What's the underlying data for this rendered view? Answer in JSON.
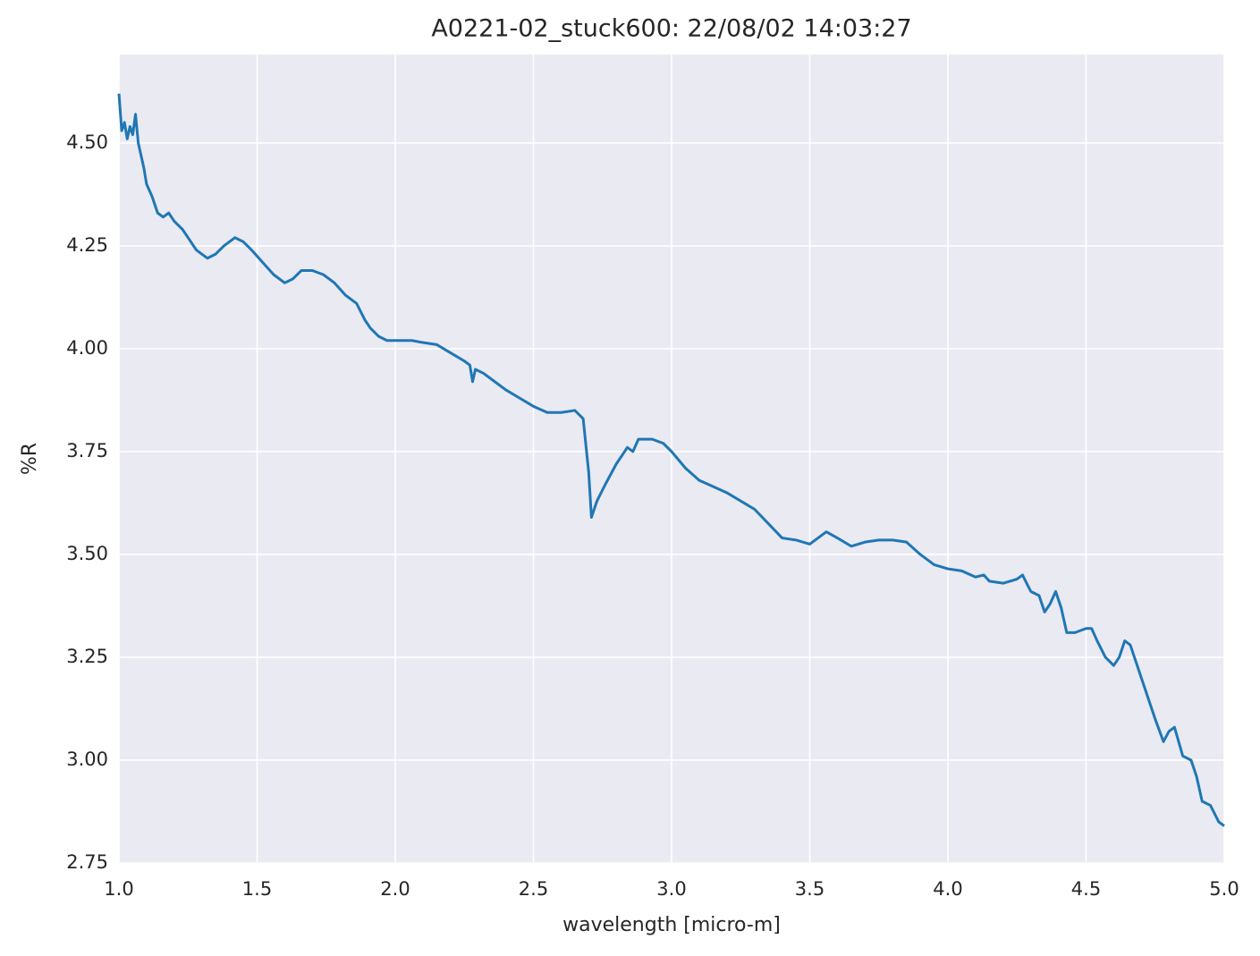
{
  "chart_data": {
    "type": "line",
    "title": "A0221-02_stuck600:  22/08/02 14:03:27",
    "x_label": "wavelength [micro-m]",
    "y_label": "%R",
    "x": [
      1.0,
      1.01,
      1.02,
      1.03,
      1.04,
      1.05,
      1.06,
      1.07,
      1.08,
      1.09,
      1.1,
      1.12,
      1.14,
      1.16,
      1.18,
      1.2,
      1.23,
      1.25,
      1.28,
      1.32,
      1.35,
      1.38,
      1.42,
      1.45,
      1.48,
      1.52,
      1.56,
      1.6,
      1.63,
      1.66,
      1.7,
      1.74,
      1.78,
      1.82,
      1.86,
      1.89,
      1.91,
      1.94,
      1.97,
      2.0,
      2.03,
      2.06,
      2.1,
      2.15,
      2.2,
      2.25,
      2.27,
      2.28,
      2.29,
      2.32,
      2.36,
      2.4,
      2.45,
      2.5,
      2.55,
      2.6,
      2.65,
      2.68,
      2.7,
      2.71,
      2.73,
      2.76,
      2.8,
      2.84,
      2.86,
      2.88,
      2.93,
      2.97,
      3.0,
      3.05,
      3.1,
      3.15,
      3.2,
      3.25,
      3.3,
      3.35,
      3.4,
      3.45,
      3.5,
      3.56,
      3.6,
      3.65,
      3.7,
      3.75,
      3.8,
      3.85,
      3.9,
      3.95,
      4.0,
      4.05,
      4.1,
      4.13,
      4.15,
      4.2,
      4.25,
      4.27,
      4.3,
      4.33,
      4.35,
      4.37,
      4.39,
      4.41,
      4.43,
      4.46,
      4.5,
      4.52,
      4.54,
      4.57,
      4.6,
      4.62,
      4.64,
      4.66,
      4.7,
      4.75,
      4.78,
      4.8,
      4.82,
      4.85,
      4.88,
      4.9,
      4.92,
      4.95,
      4.98,
      5.0
    ],
    "series": [
      {
        "name": "%R",
        "color": "#1f77b4",
        "values": [
          4.62,
          4.53,
          4.55,
          4.51,
          4.54,
          4.52,
          4.57,
          4.5,
          4.47,
          4.44,
          4.4,
          4.37,
          4.33,
          4.32,
          4.33,
          4.31,
          4.29,
          4.27,
          4.24,
          4.22,
          4.23,
          4.25,
          4.27,
          4.26,
          4.24,
          4.21,
          4.18,
          4.16,
          4.17,
          4.19,
          4.19,
          4.18,
          4.16,
          4.13,
          4.11,
          4.07,
          4.05,
          4.03,
          4.02,
          4.02,
          4.02,
          4.02,
          4.015,
          4.01,
          3.99,
          3.97,
          3.96,
          3.92,
          3.95,
          3.94,
          3.92,
          3.9,
          3.88,
          3.86,
          3.845,
          3.845,
          3.85,
          3.83,
          3.7,
          3.59,
          3.63,
          3.67,
          3.72,
          3.76,
          3.75,
          3.78,
          3.78,
          3.77,
          3.75,
          3.71,
          3.68,
          3.665,
          3.65,
          3.63,
          3.61,
          3.575,
          3.54,
          3.535,
          3.525,
          3.555,
          3.54,
          3.52,
          3.53,
          3.535,
          3.535,
          3.53,
          3.5,
          3.475,
          3.465,
          3.46,
          3.445,
          3.45,
          3.435,
          3.43,
          3.44,
          3.45,
          3.41,
          3.4,
          3.36,
          3.38,
          3.41,
          3.37,
          3.31,
          3.31,
          3.32,
          3.32,
          3.29,
          3.25,
          3.23,
          3.25,
          3.29,
          3.28,
          3.2,
          3.1,
          3.045,
          3.07,
          3.08,
          3.01,
          3.0,
          2.96,
          2.9,
          2.89,
          2.85,
          2.84
        ]
      }
    ],
    "xlim": [
      1.0,
      5.0
    ],
    "xticks": [
      {
        "value": 1.0,
        "label": "1.0"
      },
      1.5,
      {
        "value": 2.0,
        "label": "2.0"
      },
      2.5,
      {
        "value": 3.0,
        "label": "3.0"
      },
      3.5,
      {
        "value": 4.0,
        "label": "4.0"
      },
      4.5,
      {
        "value": 5.0,
        "label": "5.0"
      }
    ],
    "ylim": [
      2.75,
      4.715
    ],
    "yticks": [
      2.75,
      {
        "value": 3.0,
        "label": "3.00"
      },
      3.25,
      {
        "value": 3.5,
        "label": "3.50"
      },
      3.75,
      {
        "value": 4.0,
        "label": "4.00"
      },
      4.25,
      {
        "value": 4.5,
        "label": "4.50"
      }
    ],
    "grid": true,
    "background": "#eaeaf2"
  }
}
